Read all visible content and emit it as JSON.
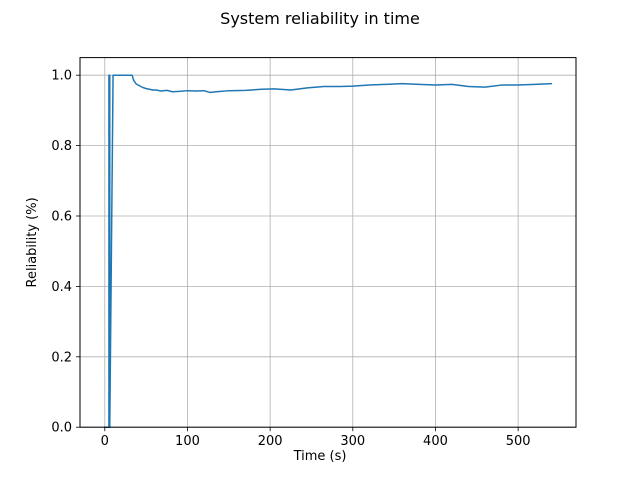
{
  "chart_data": {
    "type": "line",
    "title": "System reliability in time",
    "xlabel": "Time (s)",
    "ylabel": "Reliability (%)",
    "xlim": [
      -30,
      570
    ],
    "ylim": [
      0,
      1.05
    ],
    "x_ticks": [
      0,
      100,
      200,
      300,
      400,
      500
    ],
    "x_tick_labels": [
      "0",
      "100",
      "200",
      "300",
      "400",
      "500"
    ],
    "y_ticks": [
      0.0,
      0.2,
      0.4,
      0.6,
      0.8,
      1.0
    ],
    "y_tick_labels": [
      "0.0",
      "0.2",
      "0.4",
      "0.6",
      "0.8",
      "1.0"
    ],
    "grid": true,
    "colors": {
      "line": "#1f77b4",
      "grid": "#b0b0b0",
      "axes": "#000000"
    },
    "series": [
      {
        "x": [
          0,
          2,
          4,
          5,
          5,
          6,
          6,
          10,
          20,
          33,
          35,
          38,
          42,
          46,
          50,
          54,
          58,
          62,
          68,
          75,
          82,
          90,
          100,
          110,
          120,
          127,
          135,
          150,
          170,
          190,
          205,
          225,
          245,
          265,
          285,
          300,
          320,
          340,
          360,
          380,
          400,
          420,
          440,
          460,
          480,
          500,
          520,
          540
        ],
        "y": [
          0,
          0,
          0,
          0,
          1.0,
          1.0,
          0,
          1.0,
          1.0,
          1.0,
          0.985,
          0.975,
          0.97,
          0.965,
          0.962,
          0.96,
          0.958,
          0.958,
          0.955,
          0.957,
          0.953,
          0.954,
          0.956,
          0.955,
          0.956,
          0.951,
          0.953,
          0.956,
          0.957,
          0.96,
          0.961,
          0.958,
          0.964,
          0.968,
          0.968,
          0.969,
          0.972,
          0.974,
          0.976,
          0.974,
          0.972,
          0.974,
          0.968,
          0.966,
          0.972,
          0.972,
          0.974,
          0.976
        ]
      }
    ]
  }
}
